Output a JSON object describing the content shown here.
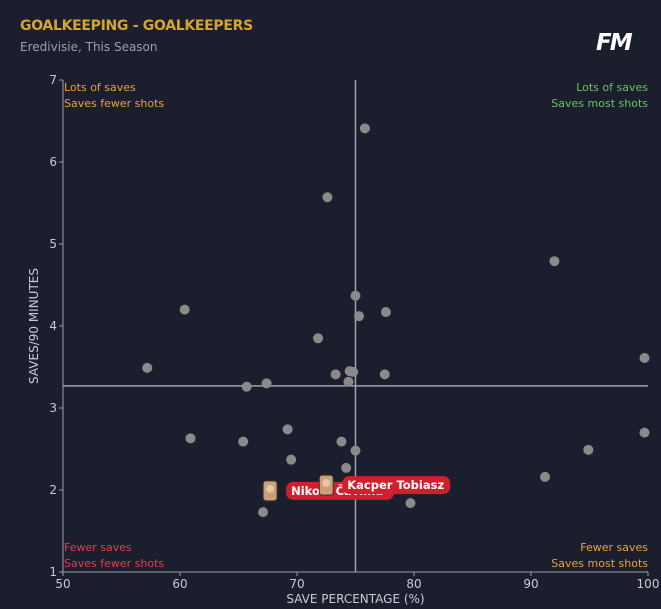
{
  "header": {
    "title": "GOALKEEPING - GOALKEEPERS",
    "subtitle": "Eredivisie, This Season",
    "logo": "FM"
  },
  "chart_data": {
    "type": "scatter",
    "title": "GOALKEEPING - GOALKEEPERS",
    "xlabel": "SAVE PERCENTAGE (%)",
    "ylabel": "SAVES/90 MINUTES",
    "xlim": [
      50,
      100
    ],
    "ylim": [
      1,
      7
    ],
    "xticks": [
      50,
      60,
      70,
      80,
      90,
      100
    ],
    "yticks": [
      1,
      2,
      3,
      4,
      5,
      6,
      7
    ],
    "median_x": 75.0,
    "median_y": 3.27,
    "grid": false,
    "quadrants": [
      {
        "pos": "top-left",
        "lines": [
          "Lots of saves",
          "Saves fewer shots"
        ],
        "color": "#e8a33a"
      },
      {
        "pos": "top-right",
        "lines": [
          "Lots of saves",
          "Saves most shots"
        ],
        "color": "#6cc06c"
      },
      {
        "pos": "bottom-left",
        "lines": [
          "Fewer saves",
          "Saves fewer shots"
        ],
        "color": "#e0404a"
      },
      {
        "pos": "bottom-right",
        "lines": [
          "Fewer saves",
          "Saves most shots"
        ],
        "color": "#e8a33a"
      }
    ],
    "points": [
      [
        75.8,
        6.41
      ],
      [
        72.6,
        5.57
      ],
      [
        92.0,
        4.79
      ],
      [
        60.4,
        4.2
      ],
      [
        75.0,
        4.37
      ],
      [
        75.3,
        4.12
      ],
      [
        77.6,
        4.17
      ],
      [
        71.8,
        3.85
      ],
      [
        57.2,
        3.49
      ],
      [
        99.7,
        3.61
      ],
      [
        73.3,
        3.41
      ],
      [
        74.5,
        3.45
      ],
      [
        74.8,
        3.44
      ],
      [
        74.4,
        3.32
      ],
      [
        77.5,
        3.41
      ],
      [
        65.7,
        3.26
      ],
      [
        67.4,
        3.3
      ],
      [
        60.9,
        2.63
      ],
      [
        65.4,
        2.59
      ],
      [
        69.2,
        2.74
      ],
      [
        73.8,
        2.59
      ],
      [
        75.0,
        2.48
      ],
      [
        69.5,
        2.37
      ],
      [
        74.2,
        2.27
      ],
      [
        94.9,
        2.49
      ],
      [
        99.7,
        2.7
      ],
      [
        91.2,
        2.16
      ],
      [
        79.7,
        1.84
      ],
      [
        67.1,
        1.73
      ]
    ],
    "highlighted": [
      {
        "name": "Nikola Čavlina",
        "x": 67.7,
        "y": 1.99
      },
      {
        "name": "Kacper Tobiasz",
        "x": 72.5,
        "y": 2.06
      }
    ],
    "colors": {
      "point": "#8a8a8a",
      "highlight": "#d0202e",
      "axis": "#9aa0b0",
      "text": "#c8ccd6"
    }
  }
}
